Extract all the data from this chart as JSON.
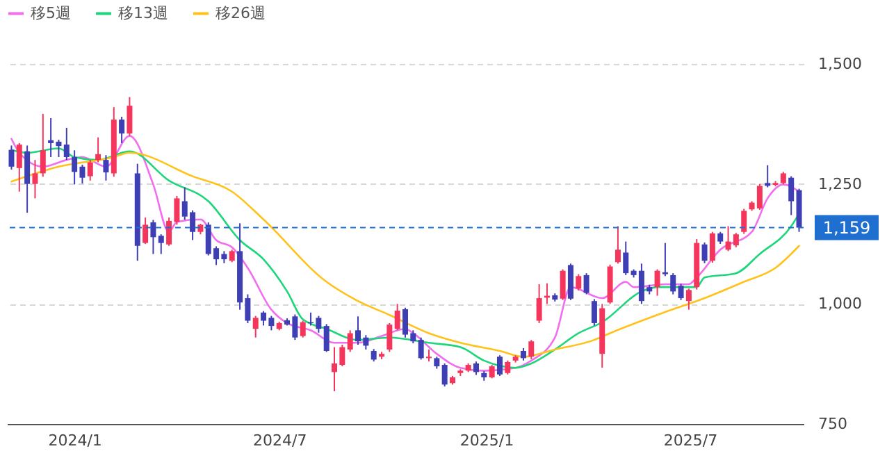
{
  "chart_data": {
    "type": "candlestick",
    "x": [
      "2023-11-06",
      "2023-11-13",
      "2023-11-20",
      "2023-11-27",
      "2023-12-04",
      "2023-12-11",
      "2023-12-18",
      "2023-12-25",
      "2024-01-01",
      "2024-01-08",
      "2024-01-15",
      "2024-01-22",
      "2024-01-29",
      "2024-02-05",
      "2024-02-12",
      "2024-02-19",
      "2024-02-26",
      "2024-03-04",
      "2024-03-11",
      "2024-03-18",
      "2024-03-25",
      "2024-04-01",
      "2024-04-08",
      "2024-04-15",
      "2024-04-22",
      "2024-04-29",
      "2024-05-06",
      "2024-05-13",
      "2024-05-20",
      "2024-05-27",
      "2024-06-03",
      "2024-06-10",
      "2024-06-17",
      "2024-06-24",
      "2024-07-01",
      "2024-07-08",
      "2024-07-15",
      "2024-07-22",
      "2024-07-29",
      "2024-08-05",
      "2024-08-12",
      "2024-08-19",
      "2024-08-26",
      "2024-09-02",
      "2024-09-09",
      "2024-09-16",
      "2024-09-23",
      "2024-09-30",
      "2024-10-07",
      "2024-10-14",
      "2024-10-21",
      "2024-10-28",
      "2024-11-04",
      "2024-11-11",
      "2024-11-18",
      "2024-11-25",
      "2024-12-02",
      "2024-12-09",
      "2024-12-16",
      "2024-12-23",
      "2024-12-30",
      "2025-01-06",
      "2025-01-13",
      "2025-01-20",
      "2025-01-27",
      "2025-02-03",
      "2025-02-10",
      "2025-02-17",
      "2025-02-24",
      "2025-03-03",
      "2025-03-10",
      "2025-03-17",
      "2025-03-24",
      "2025-03-31",
      "2025-04-07",
      "2025-04-14",
      "2025-04-21",
      "2025-04-28",
      "2025-05-05",
      "2025-05-12",
      "2025-05-19",
      "2025-05-26",
      "2025-06-02",
      "2025-06-09",
      "2025-06-16",
      "2025-06-23",
      "2025-06-30",
      "2025-07-07",
      "2025-07-14",
      "2025-07-21",
      "2025-07-28",
      "2025-08-04",
      "2025-08-11",
      "2025-08-18",
      "2025-08-25",
      "2025-09-01",
      "2025-09-08",
      "2025-09-15",
      "2025-09-22",
      "2025-09-29",
      "2025-10-06"
    ],
    "ohlc": [
      [
        1321,
        1330,
        1280,
        1286
      ],
      [
        1283,
        1335,
        1234,
        1332
      ],
      [
        1318,
        1330,
        1190,
        1250
      ],
      [
        1250,
        1300,
        1220,
        1272
      ],
      [
        1272,
        1396,
        1265,
        1320
      ],
      [
        1341,
        1387,
        1306,
        1335
      ],
      [
        1338,
        1342,
        1306,
        1329
      ],
      [
        1332,
        1367,
        1300,
        1306
      ],
      [
        1306,
        1320,
        1249,
        1275
      ],
      [
        1286,
        1290,
        1251,
        1263
      ],
      [
        1266,
        1300,
        1257,
        1295
      ],
      [
        1300,
        1347,
        1295,
        1312
      ],
      [
        1300,
        1310,
        1257,
        1274
      ],
      [
        1272,
        1410,
        1265,
        1384
      ],
      [
        1384,
        1390,
        1335,
        1355
      ],
      [
        1355,
        1431,
        1350,
        1413
      ],
      [
        1272,
        1292,
        1090,
        1121
      ],
      [
        1127,
        1180,
        1125,
        1165
      ],
      [
        1170,
        1175,
        1104,
        1139
      ],
      [
        1142,
        1145,
        1104,
        1127
      ],
      [
        1124,
        1180,
        1121,
        1173
      ],
      [
        1171,
        1225,
        1165,
        1220
      ],
      [
        1214,
        1243,
        1175,
        1182
      ],
      [
        1191,
        1195,
        1133,
        1150
      ],
      [
        1150,
        1167,
        1145,
        1165
      ],
      [
        1165,
        1170,
        1101,
        1104
      ],
      [
        1116,
        1120,
        1081,
        1093
      ],
      [
        1104,
        1110,
        1085,
        1093
      ],
      [
        1090,
        1113,
        1087,
        1110
      ],
      [
        1110,
        1168,
        988,
        1003
      ],
      [
        1012,
        1020,
        960,
        965
      ],
      [
        948,
        975,
        930,
        971
      ],
      [
        982,
        985,
        955,
        965
      ],
      [
        971,
        975,
        945,
        954
      ],
      [
        948,
        963,
        945,
        960
      ],
      [
        966,
        970,
        955,
        957
      ],
      [
        974,
        978,
        925,
        930
      ],
      [
        933,
        965,
        930,
        962
      ],
      [
        962,
        982,
        955,
        960
      ],
      [
        971,
        975,
        940,
        948
      ],
      [
        954,
        958,
        900,
        902
      ],
      [
        858,
        910,
        818,
        876
      ],
      [
        873,
        915,
        870,
        910
      ],
      [
        905,
        945,
        900,
        939
      ],
      [
        945,
        974,
        915,
        922
      ],
      [
        930,
        935,
        905,
        913
      ],
      [
        902,
        906,
        880,
        884
      ],
      [
        890,
        900,
        885,
        896
      ],
      [
        905,
        960,
        900,
        957
      ],
      [
        948,
        1000,
        945,
        986
      ],
      [
        989,
        992,
        930,
        936
      ],
      [
        939,
        945,
        918,
        922
      ],
      [
        925,
        930,
        884,
        887
      ],
      [
        887,
        905,
        880,
        890
      ],
      [
        887,
        890,
        865,
        870
      ],
      [
        873,
        876,
        828,
        832
      ],
      [
        835,
        850,
        832,
        847
      ],
      [
        856,
        864,
        850,
        861
      ],
      [
        861,
        876,
        858,
        873
      ],
      [
        876,
        880,
        852,
        858
      ],
      [
        856,
        860,
        840,
        847
      ],
      [
        847,
        873,
        845,
        870
      ],
      [
        890,
        893,
        850,
        853
      ],
      [
        856,
        882,
        853,
        879
      ],
      [
        882,
        893,
        878,
        890
      ],
      [
        902,
        908,
        882,
        887
      ],
      [
        890,
        925,
        885,
        922
      ],
      [
        965,
        1041,
        960,
        1012
      ],
      [
        1013,
        1043,
        1000,
        1017
      ],
      [
        1018,
        1022,
        1005,
        1009
      ],
      [
        1011,
        1072,
        1008,
        1069
      ],
      [
        1081,
        1084,
        1008,
        1011
      ],
      [
        1032,
        1062,
        1028,
        1058
      ],
      [
        1060,
        1064,
        1020,
        1023
      ],
      [
        1006,
        1010,
        955,
        960
      ],
      [
        896,
        1000,
        867,
        991
      ],
      [
        1003,
        1082,
        1000,
        1078
      ],
      [
        1087,
        1162,
        1084,
        1113
      ],
      [
        1107,
        1130,
        1060,
        1064
      ],
      [
        1069,
        1072,
        1055,
        1060
      ],
      [
        1069,
        1084,
        1000,
        1006
      ],
      [
        1035,
        1040,
        1020,
        1026
      ],
      [
        1035,
        1072,
        1017,
        1069
      ],
      [
        1066,
        1127,
        1058,
        1062
      ],
      [
        1060,
        1064,
        1020,
        1026
      ],
      [
        1038,
        1042,
        1008,
        1012
      ],
      [
        1006,
        1032,
        988,
        1029
      ],
      [
        1035,
        1135,
        1030,
        1127
      ],
      [
        1124,
        1128,
        1085,
        1090
      ],
      [
        1090,
        1150,
        1086,
        1147
      ],
      [
        1147,
        1150,
        1125,
        1130
      ],
      [
        1113,
        1162,
        1110,
        1130
      ],
      [
        1122,
        1148,
        1118,
        1145
      ],
      [
        1150,
        1198,
        1146,
        1194
      ],
      [
        1197,
        1214,
        1194,
        1211
      ],
      [
        1199,
        1250,
        1196,
        1246
      ],
      [
        1252,
        1289,
        1243,
        1246
      ],
      [
        1248,
        1256,
        1245,
        1252
      ],
      [
        1252,
        1275,
        1249,
        1272
      ],
      [
        1263,
        1266,
        1185,
        1214
      ],
      [
        1237,
        1240,
        1150,
        1159
      ]
    ],
    "colors": [
      "#3f3fb5",
      "#f5365c",
      "#3f3fb5",
      "#f5365c",
      "#f5365c",
      "#3f3fb5",
      "#3f3fb5",
      "#3f3fb5",
      "#3f3fb5",
      "#3f3fb5",
      "#f5365c",
      "#f5365c",
      "#3f3fb5",
      "#f5365c",
      "#3f3fb5",
      "#f5365c",
      "#3f3fb5",
      "#f5365c",
      "#3f3fb5",
      "#3f3fb5",
      "#f5365c",
      "#f5365c",
      "#3f3fb5",
      "#3f3fb5",
      "#f5365c",
      "#3f3fb5",
      "#3f3fb5",
      "#3f3fb5",
      "#f5365c",
      "#3f3fb5",
      "#3f3fb5",
      "#f5365c",
      "#3f3fb5",
      "#3f3fb5",
      "#f5365c",
      "#3f3fb5",
      "#3f3fb5",
      "#f5365c",
      "#3f3fb5",
      "#3f3fb5",
      "#3f3fb5",
      "#f5365c",
      "#f5365c",
      "#f5365c",
      "#3f3fb5",
      "#3f3fb5",
      "#3f3fb5",
      "#f5365c",
      "#f5365c",
      "#f5365c",
      "#3f3fb5",
      "#3f3fb5",
      "#3f3fb5",
      "#f5365c",
      "#3f3fb5",
      "#3f3fb5",
      "#f5365c",
      "#f5365c",
      "#f5365c",
      "#3f3fb5",
      "#3f3fb5",
      "#f5365c",
      "#3f3fb5",
      "#f5365c",
      "#f5365c",
      "#3f3fb5",
      "#f5365c",
      "#f5365c",
      "#f5365c",
      "#3f3fb5",
      "#f5365c",
      "#3f3fb5",
      "#f5365c",
      "#3f3fb5",
      "#3f3fb5",
      "#f5365c",
      "#f5365c",
      "#f5365c",
      "#3f3fb5",
      "#3f3fb5",
      "#3f3fb5",
      "#3f3fb5",
      "#f5365c",
      "#3f3fb5",
      "#3f3fb5",
      "#3f3fb5",
      "#f5365c",
      "#f5365c",
      "#3f3fb5",
      "#f5365c",
      "#3f3fb5",
      "#f5365c",
      "#f5365c",
      "#f5365c",
      "#f5365c",
      "#f5365c",
      "#3f3fb5",
      "#f5365c",
      "#f5365c",
      "#3f3fb5",
      "#3f3fb5"
    ],
    "series": [
      {
        "name": "移5週",
        "type": "line",
        "color": "#f26ef0",
        "x": [
          "2023-11-06",
          "2023-11-13",
          "2023-12-04",
          "2023-12-25",
          "2024-01-08",
          "2024-01-29",
          "2024-02-19",
          "2024-03-11",
          "2024-03-25",
          "2024-04-01",
          "2024-04-22",
          "2024-05-06",
          "2024-05-20",
          "2024-06-03",
          "2024-06-24",
          "2024-07-08",
          "2024-07-29",
          "2024-08-19",
          "2024-09-09",
          "2024-09-30",
          "2024-10-21",
          "2024-10-28",
          "2024-11-18",
          "2024-12-09",
          "2024-12-30",
          "2025-01-27",
          "2025-02-10",
          "2025-03-03",
          "2025-03-17",
          "2025-04-14",
          "2025-05-05",
          "2025-05-12",
          "2025-06-09",
          "2025-06-30",
          "2025-07-07",
          "2025-07-28",
          "2025-08-25",
          "2025-09-08",
          "2025-09-22",
          "2025-10-06"
        ],
        "values": [
          1344,
          1315,
          1286,
          1300,
          1306,
          1286,
          1350,
          1249,
          1150,
          1171,
          1176,
          1133,
          1118,
          1075,
          988,
          960,
          945,
          919,
          919,
          933,
          948,
          939,
          896,
          867,
          861,
          867,
          882,
          930,
          1035,
          1012,
          1046,
          1035,
          1041,
          1041,
          1055,
          1113,
          1150,
          1220,
          1249,
          1234
        ]
      },
      {
        "name": "移13週",
        "type": "line",
        "color": "#1ed67a",
        "x": [
          "2023-11-06",
          "2023-11-20",
          "2023-12-18",
          "2024-01-01",
          "2024-01-22",
          "2024-02-19",
          "2024-03-25",
          "2024-04-29",
          "2024-05-27",
          "2024-06-17",
          "2024-07-08",
          "2024-07-22",
          "2024-08-12",
          "2024-09-09",
          "2024-10-07",
          "2024-11-11",
          "2024-12-09",
          "2024-12-30",
          "2025-01-27",
          "2025-02-10",
          "2025-03-03",
          "2025-03-24",
          "2025-04-14",
          "2025-05-19",
          "2025-06-02",
          "2025-07-07",
          "2025-07-14",
          "2025-08-11",
          "2025-09-01",
          "2025-09-29",
          "2025-10-06"
        ],
        "values": [
          1321,
          1315,
          1324,
          1306,
          1300,
          1318,
          1257,
          1214,
          1133,
          1093,
          1026,
          968,
          948,
          925,
          930,
          919,
          910,
          882,
          867,
          876,
          905,
          939,
          962,
          1026,
          1035,
          1035,
          1055,
          1064,
          1104,
          1162,
          1188
        ]
      },
      {
        "name": "移26週",
        "type": "line",
        "color": "#ffc21a",
        "x": [
          "2023-11-06",
          "2023-12-18",
          "2024-02-05",
          "2024-02-19",
          "2024-04-15",
          "2024-05-20",
          "2024-06-17",
          "2024-08-12",
          "2024-09-09",
          "2024-10-07",
          "2024-11-11",
          "2024-12-09",
          "2025-01-13",
          "2025-02-03",
          "2025-03-03",
          "2025-04-07",
          "2025-04-21",
          "2025-06-09",
          "2025-07-14",
          "2025-08-18",
          "2025-09-15",
          "2025-10-06"
        ],
        "values": [
          1255,
          1286,
          1306,
          1315,
          1266,
          1234,
          1176,
          1046,
          1006,
          977,
          939,
          919,
          902,
          890,
          905,
          925,
          939,
          983,
          1012,
          1046,
          1075,
          1121
        ]
      }
    ],
    "xlim": [
      "2023-11-02",
      "2025-10-10"
    ],
    "xticks": [
      {
        "value": "2024-01-01",
        "label": "2024/1"
      },
      {
        "value": "2024-07-01",
        "label": "2024/7"
      },
      {
        "value": "2025-01-01",
        "label": "2025/1"
      },
      {
        "value": "2025-07-01",
        "label": "2025/7"
      }
    ],
    "ylim": [
      750,
      1500
    ],
    "yticks": [
      {
        "value": 750,
        "label": "750"
      },
      {
        "value": 1000,
        "label": "1,000"
      },
      {
        "value": 1250,
        "label": "1,250"
      },
      {
        "value": 1500,
        "label": "1,500"
      }
    ],
    "ref_lines": [
      {
        "axis": "y",
        "value": 1159,
        "label": "1,159",
        "color": "#1f6fd1",
        "line_style": "dashed"
      }
    ],
    "grid": "y",
    "legend": "top left"
  }
}
